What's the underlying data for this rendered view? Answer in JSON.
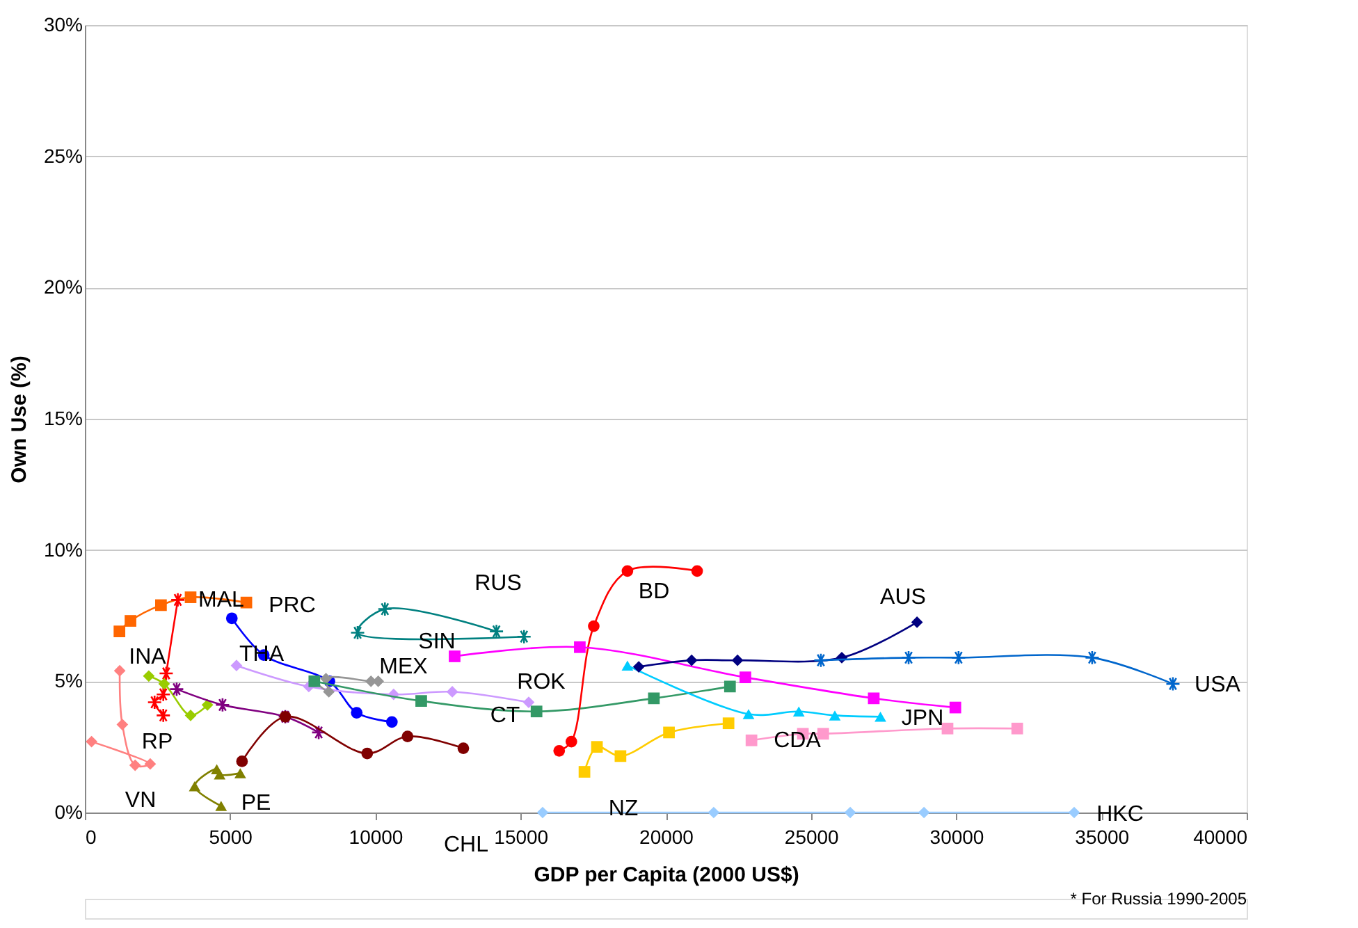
{
  "chart_data": {
    "type": "line",
    "xlabel": "GDP per Capita (2000 US$)",
    "ylabel": "Own Use (%)",
    "xlim": [
      0,
      40000
    ],
    "xticks": [
      0,
      5000,
      10000,
      15000,
      20000,
      25000,
      30000,
      35000,
      40000
    ],
    "ylim": [
      0,
      30
    ],
    "yticks": [
      {
        "value": 0,
        "label": "0%"
      },
      {
        "value": 5,
        "label": "5%"
      },
      {
        "value": 10,
        "label": "10%"
      },
      {
        "value": 15,
        "label": "15%"
      },
      {
        "value": 20,
        "label": "20%"
      },
      {
        "value": 25,
        "label": "25%"
      },
      {
        "value": 30,
        "label": "30%"
      }
    ],
    "grid": "y",
    "line_style": "solid",
    "series": [
      {
        "color": "#ff6600",
        "marker": "square",
        "x": [
          1190,
          1570,
          2620,
          3640,
          5560
        ],
        "values": [
          6.9,
          7.3,
          7.9,
          8.2,
          8.0
        ]
      },
      {
        "color": "#ff0000",
        "marker": "cross",
        "x": [
          3200,
          2800,
          2700,
          2400,
          2700
        ],
        "values": [
          8.1,
          5.3,
          4.5,
          4.2,
          3.7
        ]
      },
      {
        "color": "#99cc00",
        "marker": "diamond",
        "x": [
          2200,
          2730,
          3640,
          4220
        ],
        "values": [
          5.2,
          4.9,
          3.7,
          4.1
        ]
      },
      {
        "color": "#ff8080",
        "marker": "diamond",
        "x": [
          230,
          2250,
          1730,
          1290,
          1200
        ],
        "values": [
          2.7,
          1.85,
          1.8,
          3.35,
          5.4
        ]
      },
      {
        "color": "#0000ff",
        "marker": "circle",
        "x": [
          5060,
          6160,
          8420,
          9360,
          10570
        ],
        "values": [
          7.4,
          6.0,
          5.0,
          3.8,
          3.45
        ]
      },
      {
        "color": "#cc99ff",
        "marker": "diamond",
        "x": [
          5220,
          7710,
          10630,
          12650,
          15280
        ],
        "values": [
          5.6,
          4.8,
          4.5,
          4.6,
          4.2
        ]
      },
      {
        "color": "#969696",
        "marker": "diamond",
        "x": [
          7900,
          8400,
          8300,
          9850,
          10100
        ],
        "values": [
          5.0,
          4.6,
          5.1,
          5.0,
          5.0
        ]
      },
      {
        "color": "#339966",
        "marker": "square",
        "x": [
          7900,
          11580,
          15550,
          19590,
          22210
        ],
        "values": [
          5.0,
          4.25,
          3.85,
          4.35,
          4.8
        ]
      },
      {
        "color": "#800080",
        "marker": "cross",
        "x": [
          3160,
          4740,
          6900,
          8050
        ],
        "values": [
          4.7,
          4.1,
          3.65,
          3.05
        ]
      },
      {
        "color": "#800000",
        "marker": "circle",
        "x": [
          5410,
          6900,
          9720,
          11110,
          13030
        ],
        "values": [
          1.95,
          3.65,
          2.25,
          2.9,
          2.45
        ]
      },
      {
        "color": "#808000",
        "marker": "triangle",
        "x": [
          4690,
          3780,
          4540,
          4640,
          5350
        ],
        "values": [
          0.25,
          1.0,
          1.65,
          1.45,
          1.5
        ]
      },
      {
        "color": "#008080",
        "marker": "cross",
        "x": [
          14170,
          10330,
          9390,
          15120
        ],
        "values": [
          6.9,
          7.75,
          6.85,
          6.7
        ]
      },
      {
        "color": "#ff0000",
        "marker": "circle",
        "x": [
          16330,
          16750,
          17520,
          18680,
          21080
        ],
        "values": [
          2.35,
          2.7,
          7.1,
          9.2,
          9.2
        ]
      },
      {
        "color": "#ff00ff",
        "marker": "square",
        "x": [
          12730,
          17040,
          22740,
          27160,
          29970
        ],
        "values": [
          5.95,
          6.3,
          5.15,
          4.35,
          4.0
        ]
      },
      {
        "color": "#ffcc00",
        "marker": "square",
        "x": [
          17200,
          17630,
          18440,
          20110,
          22160
        ],
        "values": [
          1.55,
          2.5,
          2.15,
          3.05,
          3.4
        ]
      },
      {
        "color": "#00ccff",
        "marker": "triangle",
        "x": [
          18680,
          22850,
          24580,
          25820,
          27390
        ],
        "values": [
          5.6,
          3.75,
          3.85,
          3.7,
          3.65
        ]
      },
      {
        "color": "#000080",
        "marker": "diamond",
        "x": [
          19070,
          20890,
          22470,
          26060,
          28650
        ],
        "values": [
          5.55,
          5.8,
          5.8,
          5.9,
          7.25
        ]
      },
      {
        "color": "#0066cc",
        "marker": "cross",
        "x": [
          25340,
          28360,
          30080,
          34680,
          37460
        ],
        "values": [
          5.8,
          5.9,
          5.9,
          5.9,
          4.9
        ]
      },
      {
        "color": "#ff99cc",
        "marker": "square",
        "x": [
          22950,
          24720,
          25420,
          29700,
          32100
        ],
        "values": [
          2.75,
          3.0,
          3.0,
          3.2,
          3.2
        ]
      },
      {
        "color": "#99ccff",
        "marker": "diamond",
        "x": [
          15760,
          21650,
          26350,
          28890,
          34060
        ],
        "values": [
          0,
          0,
          0,
          0,
          0
        ]
      }
    ],
    "annotations": [
      "MAL",
      "PRC",
      "INA",
      "THA",
      "RP",
      "VN",
      "PE",
      "MEX",
      "SIN",
      "RUS",
      "BD",
      "ROK",
      "CT",
      "CHL",
      "NZ",
      "AUS",
      "USA",
      "JPN",
      "CDA",
      "HKC",
      "* For Russia 1990-2005"
    ]
  }
}
